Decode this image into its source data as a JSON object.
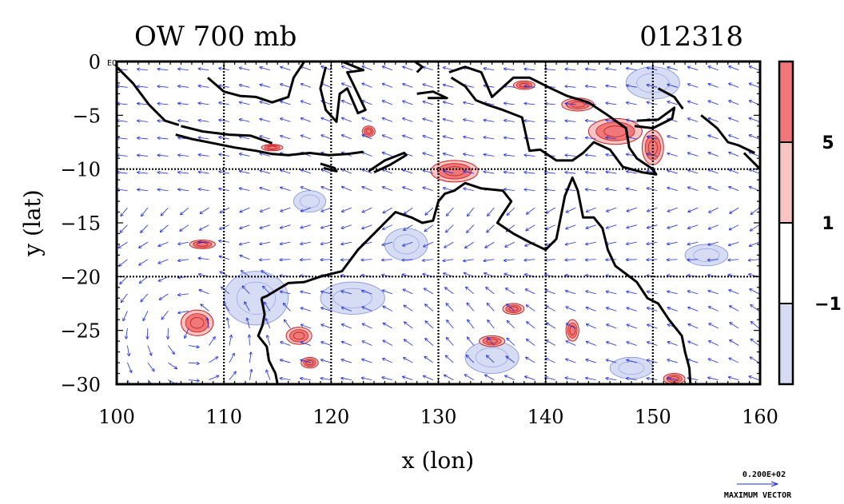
{
  "title_left": "OW 700 mb",
  "title_right": "012318",
  "corner_label": "EQ",
  "chart_data": {
    "type": "contour-vector-map",
    "xlabel": "x (lon)",
    "ylabel": "y (lat)",
    "xlim": [
      100,
      160
    ],
    "ylim": [
      -30,
      0
    ],
    "xticks": [
      100,
      110,
      120,
      130,
      140,
      150,
      160
    ],
    "yticks": [
      0,
      -5,
      -10,
      -15,
      -20,
      -25,
      -30
    ],
    "ytick_labels": [
      "0",
      "−5",
      "−10",
      "−15",
      "−20",
      "−25",
      "−30"
    ],
    "gridlines_lon": [
      110,
      120,
      130,
      140,
      150
    ],
    "gridlines_lat": [
      -10,
      -20
    ],
    "colorbar": {
      "bands": [
        {
          "label": "",
          "color": "#f07878"
        },
        {
          "label": "5",
          "color": "#f8c4c4"
        },
        {
          "label": "1",
          "color": "#ffffff"
        },
        {
          "label": "−1",
          "color": "#d6dcf4"
        }
      ]
    },
    "vector_legend": {
      "value": "0.200E+02",
      "caption": "MAXIMUM VECTOR"
    },
    "positive_features": [
      {
        "lon": 107.5,
        "lat": -24.3,
        "rx": 1.5,
        "ry": 1.2
      },
      {
        "lon": 131.5,
        "lat": -10.2,
        "rx": 2.2,
        "ry": 1.0
      },
      {
        "lon": 146.5,
        "lat": -6.5,
        "rx": 2.5,
        "ry": 1.2
      },
      {
        "lon": 150.0,
        "lat": -8.0,
        "rx": 1.0,
        "ry": 1.6
      },
      {
        "lon": 143.0,
        "lat": -4.0,
        "rx": 1.5,
        "ry": 0.6
      },
      {
        "lon": 138.0,
        "lat": -2.2,
        "rx": 1.0,
        "ry": 0.4
      },
      {
        "lon": 123.5,
        "lat": -6.5,
        "rx": 0.6,
        "ry": 0.5
      },
      {
        "lon": 114.5,
        "lat": -8.0,
        "rx": 1.0,
        "ry": 0.3
      },
      {
        "lon": 117.0,
        "lat": -25.5,
        "rx": 1.2,
        "ry": 0.8
      },
      {
        "lon": 108.0,
        "lat": -17.0,
        "rx": 1.2,
        "ry": 0.4
      },
      {
        "lon": 142.5,
        "lat": -25.0,
        "rx": 0.6,
        "ry": 1.0
      },
      {
        "lon": 137.0,
        "lat": -23.0,
        "rx": 1.0,
        "ry": 0.5
      },
      {
        "lon": 135.0,
        "lat": -26.0,
        "rx": 1.2,
        "ry": 0.5
      },
      {
        "lon": 118.0,
        "lat": -28.0,
        "rx": 0.8,
        "ry": 0.5
      },
      {
        "lon": 152.0,
        "lat": -29.5,
        "rx": 1.0,
        "ry": 0.5
      }
    ],
    "negative_features": [
      {
        "lon": 113.0,
        "lat": -22.0,
        "rx": 3.0,
        "ry": 2.5
      },
      {
        "lon": 122.0,
        "lat": -22.0,
        "rx": 3.0,
        "ry": 1.5
      },
      {
        "lon": 127.0,
        "lat": -17.0,
        "rx": 2.0,
        "ry": 1.5
      },
      {
        "lon": 148.0,
        "lat": -28.5,
        "rx": 2.0,
        "ry": 1.0
      },
      {
        "lon": 150.0,
        "lat": -2.0,
        "rx": 2.5,
        "ry": 1.5
      },
      {
        "lon": 135.0,
        "lat": -27.5,
        "rx": 2.5,
        "ry": 1.5
      },
      {
        "lon": 118.0,
        "lat": -13.0,
        "rx": 1.5,
        "ry": 1.0
      },
      {
        "lon": 155.0,
        "lat": -18.0,
        "rx": 2.0,
        "ry": 1.0
      }
    ],
    "coastlines": [
      {
        "name": "australia",
        "points": [
          [
            113.5,
            -22
          ],
          [
            114,
            -21.8
          ],
          [
            116,
            -20.6
          ],
          [
            117.5,
            -20.5
          ],
          [
            119,
            -20
          ],
          [
            121,
            -19.5
          ],
          [
            122.5,
            -17.5
          ],
          [
            123.5,
            -16.5
          ],
          [
            124.5,
            -15.5
          ],
          [
            126,
            -14
          ],
          [
            127.5,
            -14.5
          ],
          [
            128.5,
            -15
          ],
          [
            129.5,
            -14.8
          ],
          [
            130,
            -13
          ],
          [
            130.6,
            -12.3
          ],
          [
            131.5,
            -12
          ],
          [
            132.5,
            -11.3
          ],
          [
            134,
            -11.8
          ],
          [
            136,
            -12
          ],
          [
            136.8,
            -13
          ],
          [
            135.8,
            -14.5
          ],
          [
            135.5,
            -15
          ],
          [
            137,
            -16
          ],
          [
            138.5,
            -16.8
          ],
          [
            140,
            -17.5
          ],
          [
            141,
            -16.5
          ],
          [
            141.5,
            -14
          ],
          [
            141.8,
            -12.5
          ],
          [
            142.5,
            -10.8
          ],
          [
            143,
            -12
          ],
          [
            143.5,
            -14.5
          ],
          [
            144.5,
            -14.5
          ],
          [
            145.3,
            -15.5
          ],
          [
            145.8,
            -17.5
          ],
          [
            146.5,
            -19
          ],
          [
            148.5,
            -20.5
          ],
          [
            149.5,
            -22
          ],
          [
            150.5,
            -22.5
          ],
          [
            151.5,
            -24
          ],
          [
            152.7,
            -25.5
          ],
          [
            153,
            -27
          ],
          [
            153.4,
            -28.5
          ],
          [
            153.5,
            -30
          ]
        ]
      },
      {
        "name": "australia-west",
        "points": [
          [
            113.5,
            -22
          ],
          [
            113.8,
            -23.5
          ],
          [
            113.6,
            -24.5
          ],
          [
            113.2,
            -25.5
          ],
          [
            114,
            -26.5
          ],
          [
            114.2,
            -27.8
          ],
          [
            114.8,
            -29
          ],
          [
            115,
            -30
          ]
        ]
      },
      {
        "name": "java",
        "points": [
          [
            105.5,
            -6.8
          ],
          [
            107,
            -7.2
          ],
          [
            109,
            -7.6
          ],
          [
            111,
            -8
          ],
          [
            113,
            -8.3
          ],
          [
            114.5,
            -8.6
          ],
          [
            116,
            -8.7
          ],
          [
            118,
            -8.5
          ],
          [
            119.8,
            -8.7
          ],
          [
            121.5,
            -8.6
          ],
          [
            123,
            -8.4
          ]
        ]
      },
      {
        "name": "java-north",
        "points": [
          [
            106,
            -6
          ],
          [
            108,
            -6.5
          ],
          [
            110.5,
            -6.8
          ],
          [
            112.5,
            -6.9
          ],
          [
            114.5,
            -7.6
          ]
        ]
      },
      {
        "name": "sumatra",
        "points": [
          [
            100,
            -0.5
          ],
          [
            101.5,
            -2
          ],
          [
            103,
            -4
          ],
          [
            104.5,
            -5.5
          ],
          [
            105.8,
            -5.9
          ]
        ]
      },
      {
        "name": "timor",
        "points": [
          [
            123.5,
            -10.2
          ],
          [
            125,
            -9.2
          ],
          [
            126.8,
            -8.5
          ],
          [
            127,
            -8.7
          ],
          [
            125.5,
            -9.6
          ],
          [
            124,
            -10.3
          ]
        ]
      },
      {
        "name": "sumba",
        "points": [
          [
            119,
            -9.5
          ],
          [
            120.3,
            -9.9
          ],
          [
            120.5,
            -10.2
          ],
          [
            119.3,
            -9.9
          ]
        ]
      },
      {
        "name": "sulawesi",
        "points": [
          [
            119.5,
            -0.5
          ],
          [
            119,
            -2.5
          ],
          [
            119.5,
            -4.5
          ],
          [
            120.5,
            -5.6
          ],
          [
            120.8,
            -3
          ],
          [
            121.5,
            -2.5
          ],
          [
            122.5,
            -4.8
          ],
          [
            123.2,
            -4.5
          ],
          [
            122,
            -2
          ],
          [
            121.5,
            -1
          ],
          [
            123,
            -0.8
          ],
          [
            121,
            0
          ]
        ]
      },
      {
        "name": "borneo",
        "points": [
          [
            108.5,
            -1.5
          ],
          [
            110,
            -2.8
          ],
          [
            111.5,
            -3.2
          ],
          [
            113,
            -3.3
          ],
          [
            114.5,
            -3.8
          ],
          [
            116,
            -3.3
          ],
          [
            116.5,
            -1.5
          ],
          [
            117.5,
            0
          ]
        ]
      },
      {
        "name": "new-guinea",
        "points": [
          [
            131,
            -1
          ],
          [
            132.5,
            -0.5
          ],
          [
            134,
            -1
          ],
          [
            135,
            -3.3
          ],
          [
            137,
            -1.5
          ],
          [
            138.5,
            -1.5
          ],
          [
            140.5,
            -2.5
          ],
          [
            142,
            -3.2
          ],
          [
            144,
            -3.8
          ],
          [
            145.8,
            -5
          ],
          [
            147.5,
            -6.2
          ],
          [
            147.8,
            -8
          ],
          [
            148.5,
            -9
          ],
          [
            150,
            -10
          ],
          [
            150.3,
            -10.5
          ],
          [
            149,
            -10.3
          ],
          [
            147.2,
            -9.8
          ],
          [
            146,
            -8.2
          ],
          [
            144.5,
            -7.5
          ],
          [
            143.5,
            -8.5
          ],
          [
            142.5,
            -9.2
          ],
          [
            141,
            -9.2
          ],
          [
            139.5,
            -8.2
          ],
          [
            138.5,
            -8.3
          ],
          [
            137.8,
            -5.2
          ],
          [
            136,
            -4.5
          ],
          [
            134.5,
            -4
          ],
          [
            133.5,
            -3.6
          ],
          [
            132.5,
            -2.3
          ],
          [
            131.2,
            -1.5
          ]
        ]
      },
      {
        "name": "seram",
        "points": [
          [
            128,
            -3
          ],
          [
            129.5,
            -2.8
          ],
          [
            130.8,
            -3.4
          ],
          [
            129,
            -3.4
          ]
        ]
      },
      {
        "name": "halmahera",
        "points": [
          [
            127.8,
            0
          ],
          [
            128.5,
            -0.5
          ],
          [
            128,
            -1
          ]
        ]
      },
      {
        "name": "new-britain",
        "points": [
          [
            148.5,
            -5.5
          ],
          [
            150.5,
            -5.4
          ],
          [
            152,
            -4.3
          ],
          [
            151.8,
            -5.3
          ],
          [
            150,
            -6.2
          ],
          [
            148.3,
            -6.0
          ]
        ]
      },
      {
        "name": "new-ireland",
        "points": [
          [
            150.5,
            -2.5
          ],
          [
            152,
            -3.3
          ],
          [
            152.8,
            -4.4
          ]
        ]
      },
      {
        "name": "solomons",
        "points": [
          [
            154.5,
            -5
          ],
          [
            156,
            -6.2
          ],
          [
            157,
            -7.5
          ],
          [
            158,
            -7.8
          ],
          [
            159.5,
            -8.5
          ]
        ]
      },
      {
        "name": "tasmanian-north-cape",
        "points": [
          [
            158.5,
            -8.5
          ],
          [
            159.5,
            -9.5
          ],
          [
            160,
            -10
          ]
        ]
      }
    ]
  }
}
